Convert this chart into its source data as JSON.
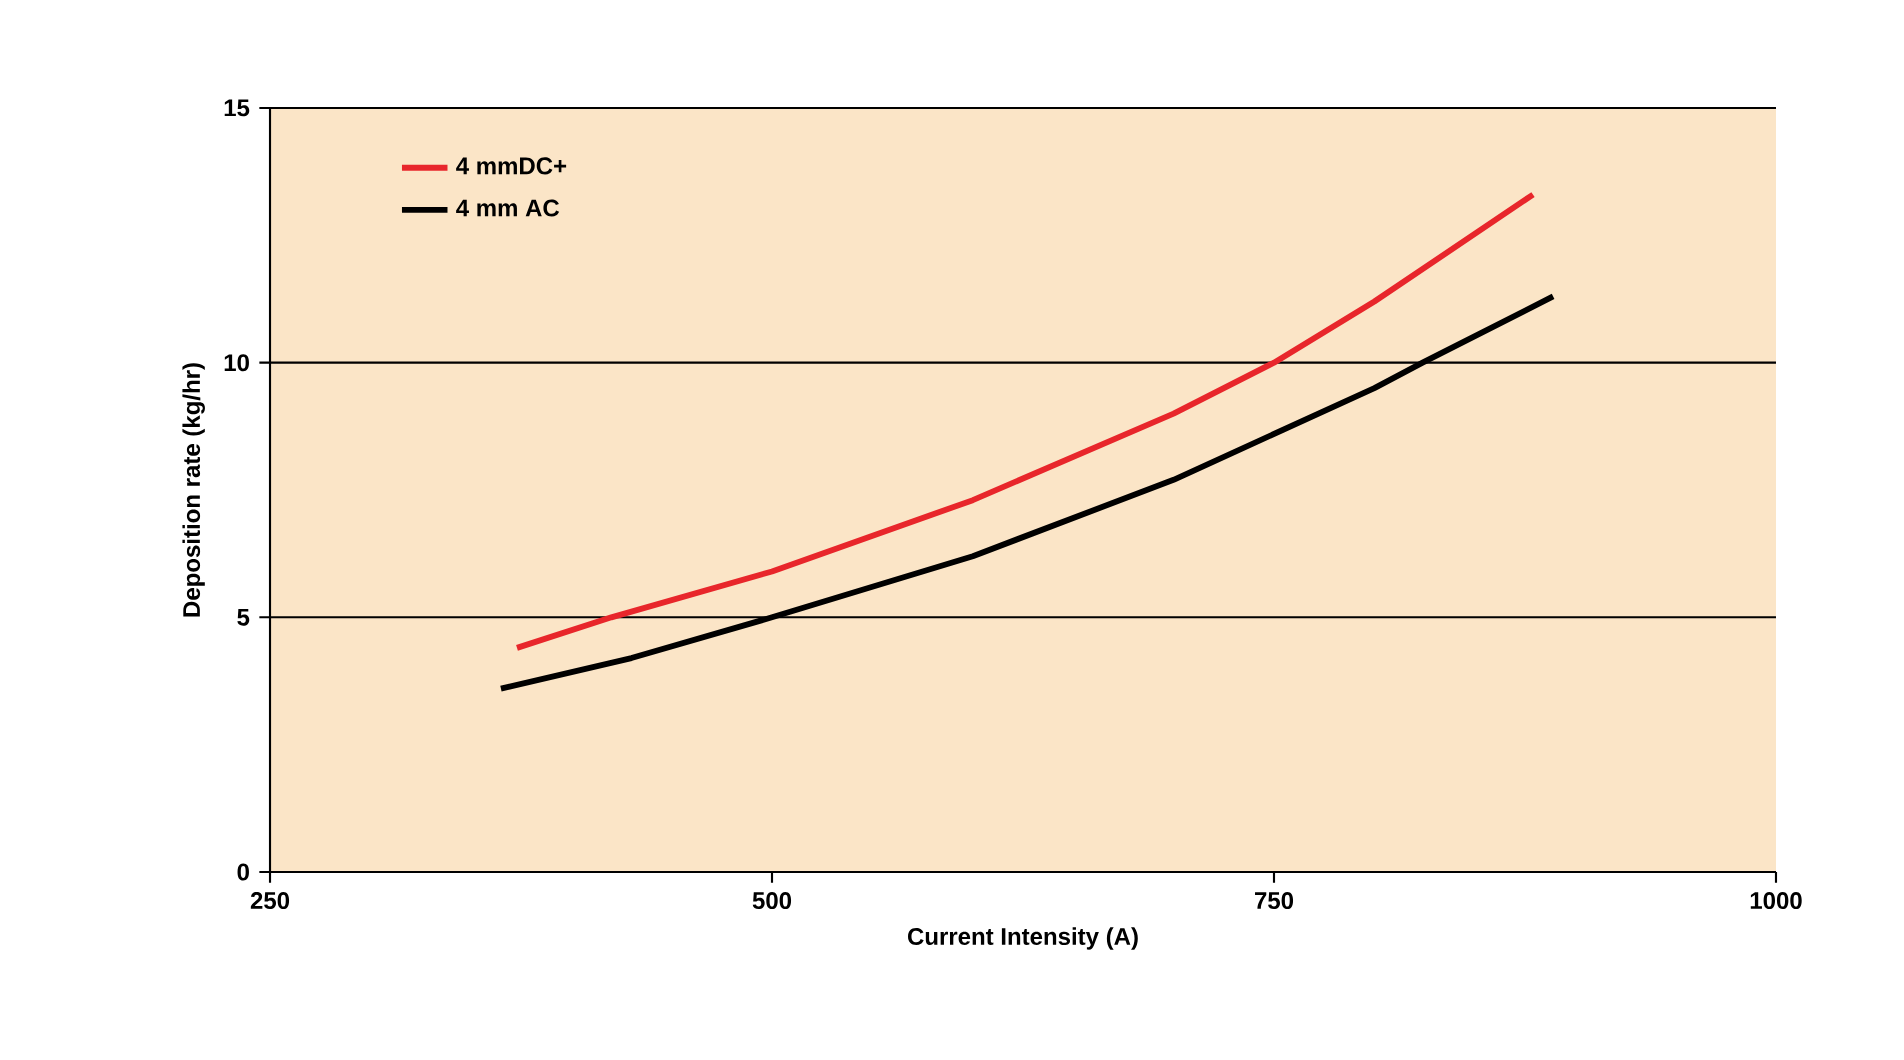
{
  "chart_data": {
    "type": "line",
    "xlabel": "Current Intensity (A)",
    "ylabel": "Deposition rate (kg/hr)",
    "xlim": [
      250,
      1000
    ],
    "xticks": [
      250,
      500,
      750,
      1000
    ],
    "ylim": [
      0,
      15
    ],
    "yticks": [
      0,
      5,
      10,
      15
    ],
    "grid": "y",
    "legend": "top left",
    "line_style": "solid",
    "series": [
      {
        "name": "4 mmDC+",
        "color": "#e8262b",
        "x": [
          373,
          420,
          500,
          600,
          700,
          750,
          800,
          879
        ],
        "values": [
          4.4,
          5.0,
          5.9,
          7.3,
          9.0,
          10.0,
          11.2,
          13.3
        ]
      },
      {
        "name": "4 mm AC",
        "color": "#000000",
        "x": [
          365,
          430,
          500,
          600,
          700,
          800,
          824,
          889
        ],
        "values": [
          3.6,
          4.2,
          5.0,
          6.2,
          7.7,
          9.5,
          10.0,
          11.3
        ]
      }
    ]
  }
}
